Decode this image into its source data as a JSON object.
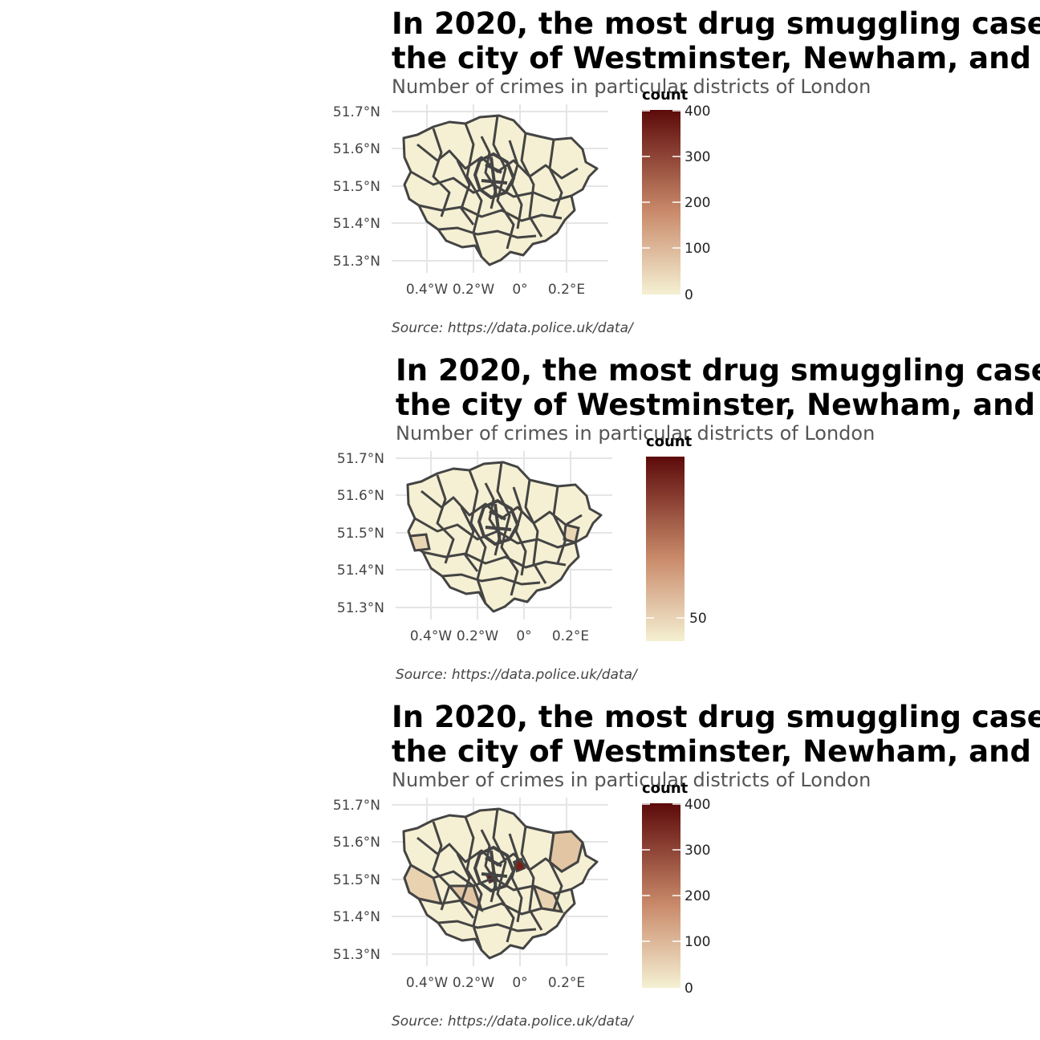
{
  "panels": [
    {
      "title_line1": "In 2020, the most drug smuggling case",
      "title_line2": "the city of Westminster, Newham, and",
      "subtitle": "Number of crimes in particular districts of London",
      "source": "Source:  https://data.police.uk/data/",
      "legend_title": "count",
      "legend_ticks": [
        "400",
        "300",
        "200",
        "100",
        "0"
      ],
      "lat_labels": [
        "51.7°N",
        "51.6°N",
        "51.5°N",
        "51.4°N",
        "51.3°N"
      ],
      "lon_labels": [
        "0.4°W",
        "0.2°W",
        "0°",
        "0.2°E"
      ]
    },
    {
      "title_line1": "In 2020, the most drug smuggling case",
      "title_line2": "the city of Westminster, Newham, and",
      "subtitle": "Number of crimes in particular districts of London",
      "source": "Source:  https://data.police.uk/data/",
      "legend_title": "count",
      "legend_ticks": [
        "50"
      ],
      "lat_labels": [
        "51.7°N",
        "51.6°N",
        "51.5°N",
        "51.4°N",
        "51.3°N"
      ],
      "lon_labels": [
        "0.4°W",
        "0.2°W",
        "0°",
        "0.2°E"
      ]
    },
    {
      "title_line1": "In 2020, the most drug smuggling case",
      "title_line2": "the city of Westminster, Newham, and",
      "subtitle": "Number of crimes in particular districts of London",
      "source": "Source:  https://data.police.uk/data/",
      "legend_title": "count",
      "legend_ticks": [
        "400",
        "300",
        "200",
        "100",
        "0"
      ],
      "lat_labels": [
        "51.7°N",
        "51.6°N",
        "51.5°N",
        "51.4°N",
        "51.3°N"
      ],
      "lon_labels": [
        "0.4°W",
        "0.2°W",
        "0°",
        "0.2°E"
      ]
    }
  ],
  "colors": {
    "scale_low": "#f5f0d3",
    "scale_mid": "#c98a6a",
    "scale_high": "#5c0a0a",
    "border": "#444444",
    "grid": "#e5e5e5"
  }
}
